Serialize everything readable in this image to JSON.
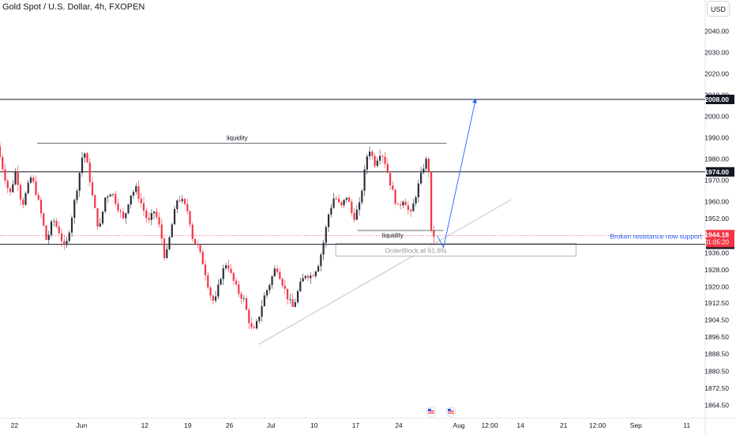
{
  "header": {
    "title": "Gold Spot / U.S. Dollar, 4h, FXOPEN",
    "currency_button": "USD"
  },
  "colors": {
    "up": "#2a2e39",
    "down": "#f23645",
    "accent": "#2962ff",
    "level": "#131722"
  },
  "chart_data": {
    "type": "candlestick",
    "title": "Gold Spot / U.S. Dollar, 4h, FXOPEN",
    "y_ticks": [
      "2040.00",
      "2030.00",
      "2020.00",
      "2010.00",
      "2000.00",
      "1990.00",
      "1980.00",
      "1970.00",
      "1960.00",
      "1952.00",
      "1944.00",
      "1936.00",
      "1928.00",
      "1920.00",
      "1912.50",
      "1904.50",
      "1896.50",
      "1888.50",
      "1880.50",
      "1872.50",
      "1864.50"
    ],
    "x_ticks": [
      {
        "label": "22",
        "x": 0.95
      },
      {
        "label": "Jun",
        "x": 5.3
      },
      {
        "label": "12",
        "x": 9.4
      },
      {
        "label": "19",
        "x": 12.2
      },
      {
        "label": "26",
        "x": 14.9
      },
      {
        "label": "Jul",
        "x": 17.6
      },
      {
        "label": "10",
        "x": 20.4
      },
      {
        "label": "17",
        "x": 23.1
      },
      {
        "label": "24",
        "x": 25.9
      },
      {
        "label": "Aug",
        "x": 29.8
      },
      {
        "label": "12:00",
        "x": 31.8
      },
      {
        "label": "14",
        "x": 33.8
      },
      {
        "label": "21",
        "x": 36.6
      },
      {
        "label": "12:00",
        "x": 38.8
      },
      {
        "label": "Sep",
        "x": 41.3
      },
      {
        "label": "11",
        "x": 44.6
      }
    ],
    "ylim": [
      1861.5,
      2049
    ],
    "xlim": [
      0,
      47.8
    ],
    "price_path": [
      [
        0,
        1986
      ],
      [
        0.4,
        1974
      ],
      [
        0.8,
        1963
      ],
      [
        1.2,
        1975
      ],
      [
        1.6,
        1958
      ],
      [
        2.2,
        1972
      ],
      [
        2.6,
        1962
      ],
      [
        2.9,
        1952
      ],
      [
        3.2,
        1941
      ],
      [
        3.6,
        1952
      ],
      [
        4.0,
        1946
      ],
      [
        4.4,
        1937
      ],
      [
        4.8,
        1952
      ],
      [
        5.2,
        1968
      ],
      [
        5.6,
        1985
      ],
      [
        5.9,
        1975
      ],
      [
        6.2,
        1961
      ],
      [
        6.6,
        1946
      ],
      [
        7.0,
        1962
      ],
      [
        7.4,
        1965
      ],
      [
        7.8,
        1958
      ],
      [
        8.2,
        1951
      ],
      [
        8.6,
        1963
      ],
      [
        9.0,
        1966
      ],
      [
        9.4,
        1958
      ],
      [
        9.8,
        1950
      ],
      [
        10.2,
        1956
      ],
      [
        10.6,
        1946
      ],
      [
        10.9,
        1932
      ],
      [
        11.3,
        1948
      ],
      [
        11.7,
        1962
      ],
      [
        12.0,
        1960
      ],
      [
        12.4,
        1955
      ],
      [
        12.7,
        1942
      ],
      [
        13.0,
        1939
      ],
      [
        13.4,
        1930
      ],
      [
        13.8,
        1917
      ],
      [
        14.1,
        1912
      ],
      [
        14.5,
        1925
      ],
      [
        14.9,
        1932
      ],
      [
        15.2,
        1925
      ],
      [
        15.6,
        1918
      ],
      [
        16.0,
        1914
      ],
      [
        16.3,
        1905
      ],
      [
        16.6,
        1898
      ],
      [
        16.9,
        1904
      ],
      [
        17.3,
        1915
      ],
      [
        17.7,
        1922
      ],
      [
        18.1,
        1930
      ],
      [
        18.5,
        1922
      ],
      [
        18.9,
        1914
      ],
      [
        19.2,
        1910
      ],
      [
        19.6,
        1920
      ],
      [
        20.0,
        1926
      ],
      [
        20.4,
        1925
      ],
      [
        20.8,
        1930
      ],
      [
        21.1,
        1938
      ],
      [
        21.5,
        1954
      ],
      [
        21.9,
        1963
      ],
      [
        22.3,
        1957
      ],
      [
        22.7,
        1963
      ],
      [
        23.1,
        1952
      ],
      [
        23.5,
        1958
      ],
      [
        23.8,
        1972
      ],
      [
        24.1,
        1986
      ],
      [
        24.5,
        1978
      ],
      [
        24.9,
        1984
      ],
      [
        25.2,
        1978
      ],
      [
        25.6,
        1966
      ],
      [
        26.0,
        1957
      ],
      [
        26.4,
        1962
      ],
      [
        26.8,
        1953
      ],
      [
        27.2,
        1964
      ],
      [
        27.5,
        1972
      ],
      [
        27.8,
        1980
      ],
      [
        28.0,
        1976
      ],
      [
        28.15,
        1945
      ],
      [
        28.3,
        1944.18
      ]
    ],
    "levels": [
      {
        "price": 2008.0,
        "label": "2008.00"
      },
      {
        "price": 1974.0,
        "label": "1974.00"
      },
      {
        "price": 1940.0,
        "label": "1940.00"
      }
    ],
    "last_price": {
      "value": 1944.18,
      "label": "1944.18",
      "countdown": "01:05:20"
    },
    "annotations": {
      "liquidity_top": "liquidity",
      "liquidity_bottom": "liquidity",
      "orderblock": "OrderBlock at 61.8%",
      "support_note": "Broken resistance now support"
    },
    "trendline": {
      "from": [
        16.8,
        1893
      ],
      "to": [
        33.2,
        1961
      ]
    },
    "orderblock_box": {
      "x1": 21.8,
      "x2": 37.4,
      "y_top": 1940.5,
      "y_bottom": 1934.5
    },
    "projection_arrow": [
      [
        28.4,
        1944
      ],
      [
        28.8,
        1938.5
      ],
      [
        30.9,
        2008.5
      ]
    ],
    "liquidity_lines": [
      {
        "x1": 2.4,
        "x2": 29.0,
        "price": 1987.5
      },
      {
        "x1": 23.2,
        "x2": 28.8,
        "price": 1946.5
      }
    ],
    "grid": false,
    "legend": "none"
  }
}
